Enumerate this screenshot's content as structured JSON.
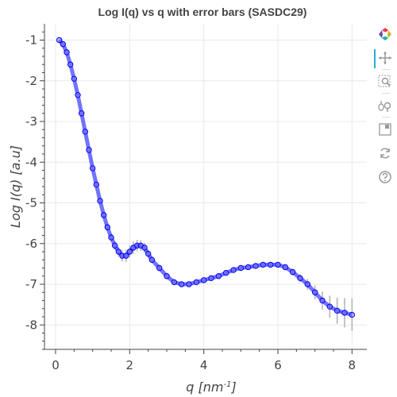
{
  "chart_data": {
    "type": "scatter",
    "title": "Log I(q) vs q with error bars (SASDC29)",
    "xlabel": "q [nm",
    "xlabel_sup": "-1",
    "xlabel_end": "]",
    "ylabel": "Log I(q) [a.u]",
    "xlim": [
      -0.3,
      8.4
    ],
    "ylim": [
      -8.6,
      -0.6
    ],
    "xticks": [
      "0",
      "2",
      "4",
      "6",
      "8"
    ],
    "yticks": [
      "-1",
      "-2",
      "-3",
      "-4",
      "-5",
      "-6",
      "-7",
      "-8"
    ],
    "xtick_values": [
      0,
      2,
      4,
      6,
      8
    ],
    "ytick_values": [
      -1,
      -2,
      -3,
      -4,
      -5,
      -6,
      -7,
      -8
    ],
    "grid": true,
    "series": [
      {
        "marker": "circle",
        "color": "#0000ff",
        "fill": "#7b7bf0",
        "error_bar_color": "#b0b0b0",
        "x": [
          0.1,
          0.2,
          0.3,
          0.4,
          0.5,
          0.6,
          0.7,
          0.8,
          0.9,
          1.0,
          1.1,
          1.2,
          1.3,
          1.4,
          1.5,
          1.6,
          1.7,
          1.8,
          1.9,
          2.0,
          2.1,
          2.2,
          2.3,
          2.4,
          2.5,
          2.6,
          2.8,
          3.0,
          3.2,
          3.4,
          3.6,
          3.8,
          4.0,
          4.2,
          4.4,
          4.6,
          4.8,
          5.0,
          5.2,
          5.4,
          5.6,
          5.8,
          6.0,
          6.2,
          6.4,
          6.6,
          6.8,
          7.0,
          7.2,
          7.4,
          7.6,
          7.8,
          8.0
        ],
        "y": [
          -1.0,
          -1.1,
          -1.3,
          -1.6,
          -1.95,
          -2.35,
          -2.8,
          -3.25,
          -3.7,
          -4.15,
          -4.55,
          -4.95,
          -5.3,
          -5.6,
          -5.85,
          -6.05,
          -6.2,
          -6.3,
          -6.3,
          -6.2,
          -6.1,
          -6.05,
          -6.05,
          -6.1,
          -6.25,
          -6.4,
          -6.6,
          -6.8,
          -6.95,
          -7.0,
          -7.0,
          -6.95,
          -6.9,
          -6.85,
          -6.8,
          -6.72,
          -6.65,
          -6.6,
          -6.58,
          -6.55,
          -6.52,
          -6.52,
          -6.52,
          -6.58,
          -6.7,
          -6.85,
          -7.0,
          -7.2,
          -7.4,
          -7.55,
          -7.65,
          -7.7,
          -7.75
        ],
        "err": [
          0.01,
          0.01,
          0.01,
          0.01,
          0.01,
          0.01,
          0.02,
          0.02,
          0.02,
          0.03,
          0.03,
          0.04,
          0.05,
          0.06,
          0.08,
          0.1,
          0.12,
          0.14,
          0.15,
          0.15,
          0.15,
          0.14,
          0.13,
          0.12,
          0.1,
          0.08,
          0.06,
          0.05,
          0.04,
          0.04,
          0.04,
          0.04,
          0.04,
          0.04,
          0.04,
          0.04,
          0.04,
          0.04,
          0.04,
          0.04,
          0.05,
          0.05,
          0.05,
          0.06,
          0.08,
          0.1,
          0.13,
          0.17,
          0.22,
          0.27,
          0.32,
          0.36,
          0.4
        ]
      }
    ]
  },
  "toolbar": {
    "items": [
      {
        "name": "bokeh-logo-icon"
      },
      {
        "name": "pan-icon",
        "active": true
      },
      {
        "name": "box-zoom-icon"
      },
      {
        "name": "wheel-zoom-icon"
      },
      {
        "name": "save-icon"
      },
      {
        "name": "reset-icon"
      },
      {
        "name": "help-icon"
      }
    ]
  }
}
